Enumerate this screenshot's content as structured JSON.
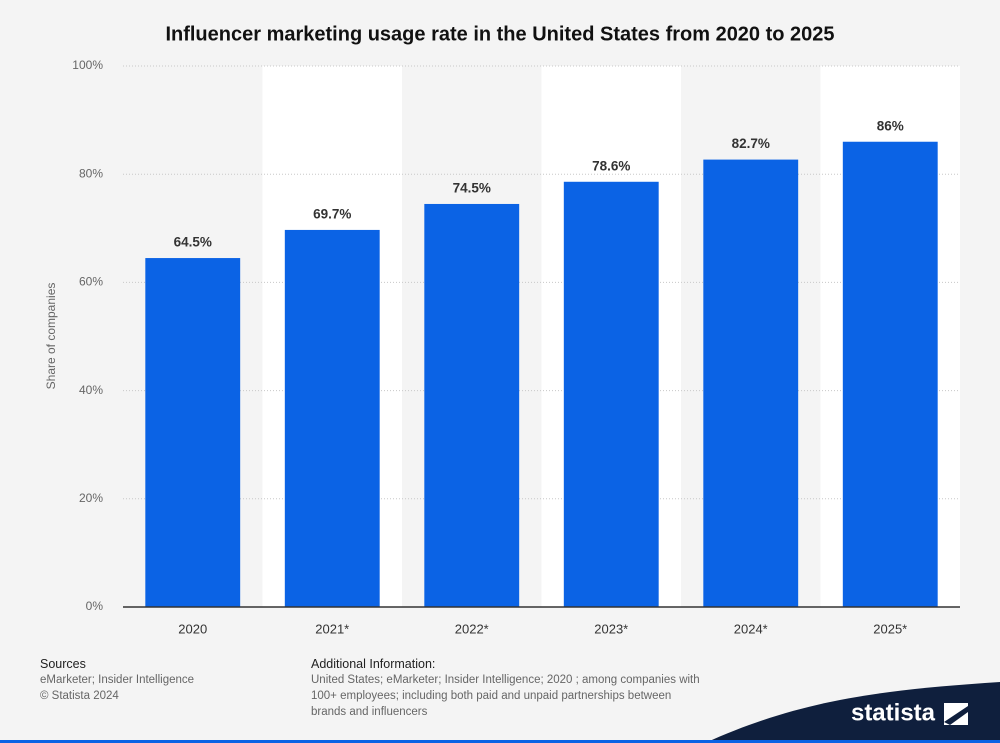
{
  "chart_data": {
    "type": "bar",
    "title": "Influencer marketing usage rate in the United States from 2020 to 2025",
    "y_label": "Share of companies",
    "categories": [
      "2020",
      "2021*",
      "2022*",
      "2023*",
      "2024*",
      "2025*"
    ],
    "values": [
      64.5,
      69.7,
      74.5,
      78.6,
      82.7,
      86
    ],
    "value_labels": [
      "64.5%",
      "69.7%",
      "74.5%",
      "78.6%",
      "82.7%",
      "86%"
    ],
    "color": "#0b63e5",
    "ylim": [
      0,
      100
    ],
    "yticks": [
      {
        "value": 0,
        "label": "0%"
      },
      {
        "value": 20,
        "label": "20%"
      },
      {
        "value": 40,
        "label": "40%"
      },
      {
        "value": 60,
        "label": "60%"
      },
      {
        "value": 80,
        "label": "80%"
      },
      {
        "value": 100,
        "label": "100%"
      }
    ],
    "grid": true
  },
  "footer": {
    "sources_title": "Sources",
    "sources": "eMarketer; Insider Intelligence",
    "copyright": "© Statista 2024",
    "additional_title": "Additional Information:",
    "additional_text": "United States; eMarketer; Insider Intelligence; 2020 ; among companies with 100+ employees; including both paid and unpaid partnerships between brands and influencers",
    "logo": "statista"
  }
}
